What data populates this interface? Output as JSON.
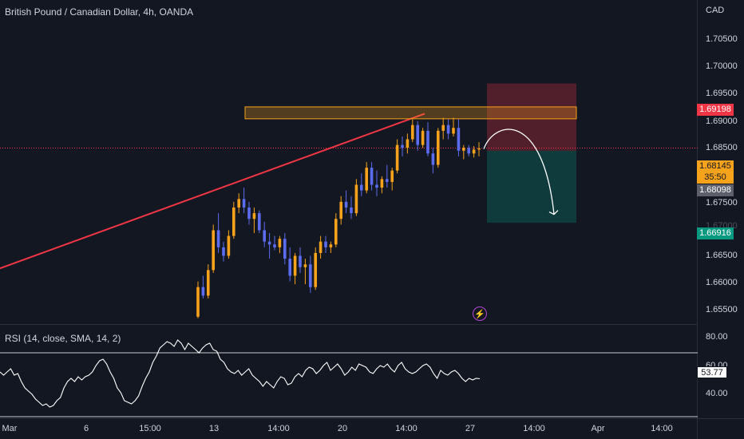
{
  "header": {
    "title": "British Pound / Canadian Dollar, 4h, OANDA"
  },
  "price_axis": {
    "currency": "CAD",
    "labels": [
      "1.70500",
      "1.70000",
      "1.69500",
      "1.69000",
      "1.68500",
      "1.67500",
      "1.67000",
      "1.66500",
      "1.66000",
      "1.65500"
    ]
  },
  "badges": {
    "stop": "1.69198",
    "current_price": "1.68145",
    "countdown": "35:50",
    "entry": "1.68098",
    "target": "1.66916"
  },
  "rsi": {
    "title": "RSI (14, close, SMA, 14, 2)",
    "labels": [
      "80.00",
      "60.00",
      "40.00"
    ],
    "value": "53.77"
  },
  "time_axis": [
    "Mar",
    "6",
    "15:00",
    "13",
    "14:00",
    "20",
    "14:00",
    "27",
    "14:00",
    "Apr",
    "14:00"
  ],
  "colors": {
    "background": "#131722",
    "up_candle": "#f7a21b",
    "down_candle": "#5b6cf0",
    "trendline": "#f23645",
    "resistance_zone": "#f7a21b",
    "stop_zone": "#f23645",
    "target_zone": "#089981"
  },
  "icons": {
    "alert": "bolt-icon"
  },
  "chart_data": {
    "type": "candlestick",
    "title": "British Pound / Canadian Dollar, 4h, OANDA",
    "ylim": [
      1.6505,
      1.7075
    ],
    "levels": {
      "stop": 1.69198,
      "current": 1.68145,
      "entry": 1.68098,
      "target": 1.66916
    },
    "resistance_zone": [
      1.6866,
      1.6887
    ],
    "ohlc": [
      [
        1.6518,
        1.658,
        1.6515,
        1.657
      ],
      [
        1.657,
        1.659,
        1.655,
        1.6555
      ],
      [
        1.6555,
        1.661,
        1.655,
        1.66
      ],
      [
        1.66,
        1.668,
        1.6595,
        1.667
      ],
      [
        1.667,
        1.67,
        1.663,
        1.664
      ],
      [
        1.664,
        1.665,
        1.6615,
        1.6625
      ],
      [
        1.6625,
        1.667,
        1.662,
        1.666
      ],
      [
        1.666,
        1.672,
        1.6655,
        1.671
      ],
      [
        1.671,
        1.6735,
        1.67,
        1.6725
      ],
      [
        1.6725,
        1.6745,
        1.67,
        1.671
      ],
      [
        1.671,
        1.672,
        1.668,
        1.669
      ],
      [
        1.669,
        1.671,
        1.6665,
        1.67
      ],
      [
        1.67,
        1.6705,
        1.6665,
        1.667
      ],
      [
        1.667,
        1.6685,
        1.664,
        1.665
      ],
      [
        1.665,
        1.6665,
        1.662,
        1.6645
      ],
      [
        1.6645,
        1.666,
        1.6635,
        1.664
      ],
      [
        1.664,
        1.666,
        1.663,
        1.6655
      ],
      [
        1.6655,
        1.6665,
        1.661,
        1.662
      ],
      [
        1.662,
        1.664,
        1.658,
        1.659
      ],
      [
        1.659,
        1.663,
        1.6575,
        1.6625
      ],
      [
        1.6625,
        1.664,
        1.6595,
        1.6605
      ],
      [
        1.6605,
        1.662,
        1.6575,
        1.661
      ],
      [
        1.661,
        1.6625,
        1.656,
        1.657
      ],
      [
        1.657,
        1.664,
        1.6565,
        1.663
      ],
      [
        1.663,
        1.666,
        1.662,
        1.665
      ],
      [
        1.665,
        1.666,
        1.663,
        1.664
      ],
      [
        1.664,
        1.665,
        1.663,
        1.6645
      ],
      [
        1.6645,
        1.67,
        1.664,
        1.669
      ],
      [
        1.669,
        1.673,
        1.668,
        1.672
      ],
      [
        1.672,
        1.674,
        1.67,
        1.671
      ],
      [
        1.671,
        1.673,
        1.669,
        1.67
      ],
      [
        1.67,
        1.676,
        1.6695,
        1.675
      ],
      [
        1.675,
        1.677,
        1.673,
        1.674
      ],
      [
        1.674,
        1.679,
        1.6735,
        1.678
      ],
      [
        1.678,
        1.679,
        1.674,
        1.675
      ],
      [
        1.675,
        1.6775,
        1.673,
        1.6745
      ],
      [
        1.6745,
        1.6765,
        1.6735,
        1.676
      ],
      [
        1.676,
        1.6785,
        1.6745,
        1.6755
      ],
      [
        1.6755,
        1.678,
        1.674,
        1.6775
      ],
      [
        1.6775,
        1.683,
        1.677,
        1.682
      ],
      [
        1.682,
        1.6835,
        1.68,
        1.6815
      ],
      [
        1.6815,
        1.684,
        1.6805,
        1.683
      ],
      [
        1.683,
        1.6865,
        1.6825,
        1.6855
      ],
      [
        1.6855,
        1.6862,
        1.681,
        1.682
      ],
      [
        1.682,
        1.685,
        1.6815,
        1.6845
      ],
      [
        1.6845,
        1.686,
        1.68,
        1.6805
      ],
      [
        1.6805,
        1.6815,
        1.677,
        1.6785
      ],
      [
        1.6785,
        1.685,
        1.678,
        1.6845
      ],
      [
        1.6845,
        1.6868,
        1.683,
        1.6855
      ],
      [
        1.6855,
        1.6865,
        1.683,
        1.684
      ],
      [
        1.684,
        1.6868,
        1.6835,
        1.685
      ],
      [
        1.685,
        1.6865,
        1.68,
        1.681
      ],
      [
        1.681,
        1.682,
        1.6795,
        1.6815
      ],
      [
        1.6815,
        1.682,
        1.68,
        1.6805
      ],
      [
        1.6805,
        1.6818,
        1.6798,
        1.6812
      ],
      [
        1.6812,
        1.6825,
        1.68,
        1.6814
      ]
    ],
    "rsi_range": [
      30,
      85
    ],
    "rsi_levels": [
      70,
      30
    ],
    "rsi_values": [
      58,
      56,
      58,
      60,
      56,
      57,
      52,
      48,
      46,
      44,
      41,
      39,
      37,
      38,
      36,
      37,
      40,
      42,
      48,
      52,
      54,
      52,
      55,
      53,
      55,
      56,
      58,
      62,
      65,
      66,
      63,
      58,
      54,
      48,
      45,
      40,
      39,
      38,
      40,
      43,
      49,
      54,
      58,
      64,
      68,
      73,
      75,
      77,
      76,
      74,
      78,
      76,
      72,
      76,
      74,
      72,
      70,
      73,
      75,
      76,
      72,
      71,
      66,
      64,
      60,
      58,
      57,
      59,
      56,
      58,
      60,
      56,
      54,
      52,
      49,
      52,
      50,
      48,
      52,
      55,
      54,
      50,
      51,
      55,
      57,
      55,
      59,
      61,
      60,
      57,
      59,
      62,
      64,
      59,
      61,
      63,
      60,
      56,
      58,
      61,
      59,
      63,
      62,
      61,
      58,
      57,
      60,
      62,
      61,
      63,
      60,
      58,
      62,
      64,
      60,
      58,
      57,
      58,
      60,
      62,
      63,
      61,
      57,
      54,
      59,
      57,
      56,
      58,
      59,
      57,
      54,
      52,
      54,
      53,
      54,
      53.77
    ]
  }
}
